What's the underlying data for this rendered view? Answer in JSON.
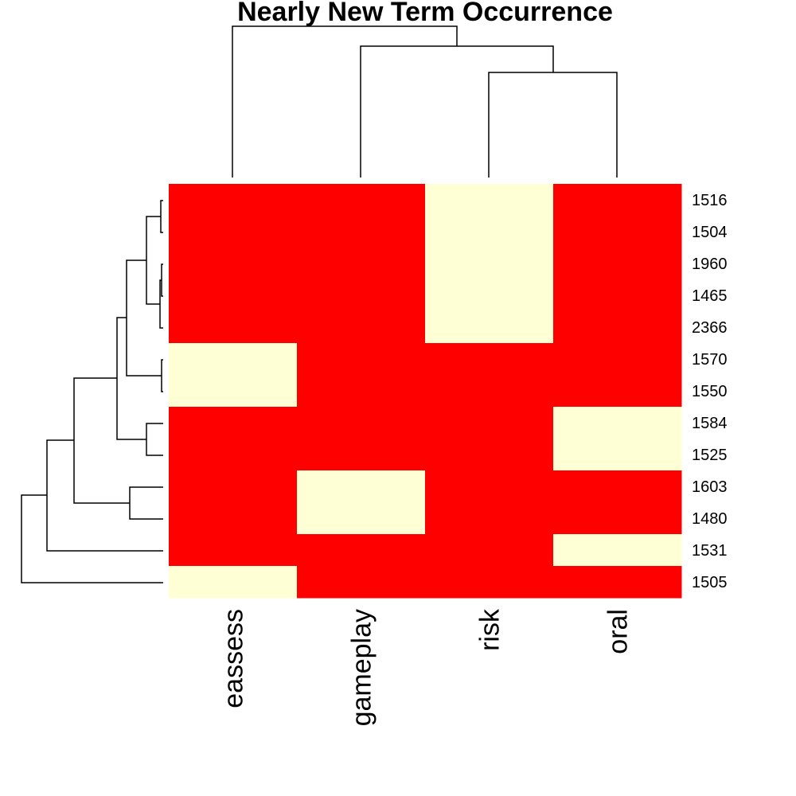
{
  "chart_data": {
    "type": "heatmap",
    "title": "Nearly New Term Occurrence",
    "columns": [
      "eassess",
      "gameplay",
      "risk",
      "oral"
    ],
    "rows": [
      "1516",
      "1504",
      "1960",
      "1465",
      "2366",
      "1570",
      "1550",
      "1584",
      "1525",
      "1603",
      "1480",
      "1531",
      "1505"
    ],
    "values": [
      [
        1,
        1,
        0,
        1
      ],
      [
        1,
        1,
        0,
        1
      ],
      [
        1,
        1,
        0,
        1
      ],
      [
        1,
        1,
        0,
        1
      ],
      [
        1,
        1,
        0,
        1
      ],
      [
        0,
        1,
        1,
        1
      ],
      [
        0,
        1,
        1,
        1
      ],
      [
        1,
        1,
        1,
        0
      ],
      [
        1,
        1,
        1,
        0
      ],
      [
        1,
        0,
        1,
        1
      ],
      [
        1,
        0,
        1,
        1
      ],
      [
        1,
        1,
        1,
        0
      ],
      [
        0,
        1,
        1,
        1
      ]
    ],
    "colors": {
      "present": "#ff0000",
      "absent": "#ffffd6"
    },
    "legend": "none",
    "grid": false
  }
}
